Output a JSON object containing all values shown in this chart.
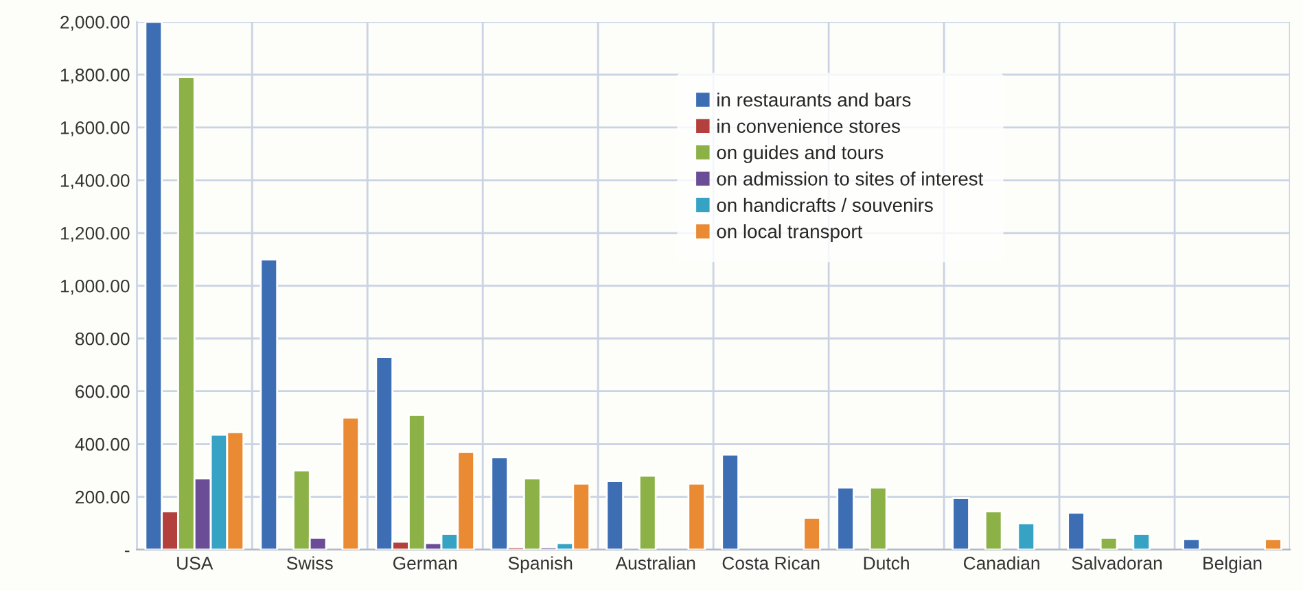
{
  "chart_data": {
    "type": "bar",
    "categories": [
      "USA",
      "Swiss",
      "German",
      "Spanish",
      "Australian",
      "Costa Rican",
      "Dutch",
      "Canadian",
      "Salvadoran",
      "Belgian"
    ],
    "series": [
      {
        "name": "in restaurants and bars",
        "color": "#3d6eb4",
        "values": [
          2000,
          1100,
          730,
          350,
          260,
          360,
          235,
          195,
          140,
          40
        ]
      },
      {
        "name": "in convenience stores",
        "color": "#b3403d",
        "values": [
          145,
          null,
          30,
          10,
          null,
          null,
          null,
          null,
          null,
          null
        ]
      },
      {
        "name": "on guides and tours",
        "color": "#8cb146",
        "values": [
          1790,
          300,
          510,
          270,
          280,
          null,
          235,
          145,
          45,
          null
        ]
      },
      {
        "name": "on admission to sites of interest",
        "color": "#6a4d96",
        "values": [
          270,
          45,
          25,
          10,
          null,
          null,
          null,
          null,
          null,
          null
        ]
      },
      {
        "name": "on handicrafts / souvenirs",
        "color": "#36a3c4",
        "values": [
          435,
          null,
          60,
          25,
          null,
          null,
          null,
          100,
          60,
          null
        ]
      },
      {
        "name": "on local transport",
        "color": "#ea8a33",
        "values": [
          445,
          500,
          370,
          250,
          250,
          120,
          null,
          null,
          null,
          40
        ]
      }
    ],
    "ylim": [
      0,
      2000
    ],
    "yticks": [
      {
        "value": 0,
        "label": "-"
      },
      {
        "value": 200,
        "label": "200.00"
      },
      {
        "value": 400,
        "label": "400.00"
      },
      {
        "value": 600,
        "label": "600.00"
      },
      {
        "value": 800,
        "label": "800.00"
      },
      {
        "value": 1000,
        "label": "1,000.00"
      },
      {
        "value": 1200,
        "label": "1,200.00"
      },
      {
        "value": 1400,
        "label": "1,400.00"
      },
      {
        "value": 1600,
        "label": "1,600.00"
      },
      {
        "value": 1800,
        "label": "1,800.00"
      },
      {
        "value": 2000,
        "label": "2,000.00"
      }
    ],
    "grid": true,
    "legend": "top"
  }
}
